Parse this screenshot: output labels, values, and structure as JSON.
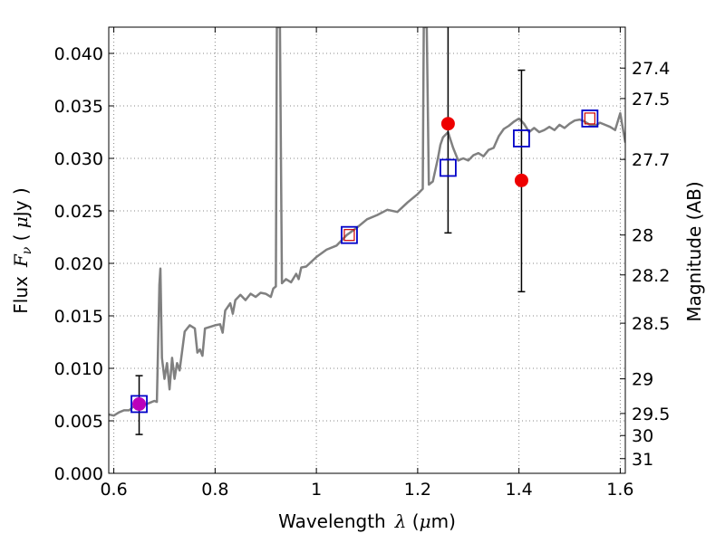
{
  "chart_data": {
    "type": "line",
    "xlabel": "Wavelength",
    "xlabel_symbol": "λ",
    "xlabel_unit_open": " (",
    "xlabel_unit_mu": "μ",
    "xlabel_unit_rest": "m)",
    "ylabel": "Flux",
    "ylabel_symbol": "F",
    "ylabel_sub": "ν",
    "ylabel_unit_open": " ( ",
    "ylabel_unit_mu": "μ",
    "ylabel_unit_rest": "Jy )",
    "y2label": "Magnitude (AB)",
    "xlim": [
      0.59,
      1.61
    ],
    "ylim": [
      0.0,
      0.0425
    ],
    "grid": true,
    "x_ticks": [
      0.6,
      0.8,
      1.0,
      1.2,
      1.4,
      1.6
    ],
    "x_tick_labels": [
      "0.6",
      "0.8",
      "1",
      "1.2",
      "1.4",
      "1.6"
    ],
    "y_ticks": [
      0.0,
      0.005,
      0.01,
      0.015,
      0.02,
      0.025,
      0.03,
      0.035,
      0.04
    ],
    "y_tick_labels": [
      "0.000",
      "0.005",
      "0.010",
      "0.015",
      "0.020",
      "0.025",
      "0.030",
      "0.035",
      "0.040"
    ],
    "y2_ticks": [
      {
        "label": "27.4",
        "flux": 0.0386
      },
      {
        "label": "27.5",
        "flux": 0.0357
      },
      {
        "label": "27.7",
        "flux": 0.0299
      },
      {
        "label": "28",
        "flux": 0.0227
      },
      {
        "label": "28.2",
        "flux": 0.0189
      },
      {
        "label": "28.5",
        "flux": 0.0143
      },
      {
        "label": "29",
        "flux": 0.009
      },
      {
        "label": "29.5",
        "flux": 0.0057
      },
      {
        "label": "30",
        "flux": 0.0036
      },
      {
        "label": "31",
        "flux": 0.0014
      }
    ],
    "series": [
      {
        "kind": "model_spectrum",
        "color": "#808080",
        "points": [
          [
            0.59,
            0.0056
          ],
          [
            0.6,
            0.0055
          ],
          [
            0.61,
            0.0058
          ],
          [
            0.62,
            0.006
          ],
          [
            0.63,
            0.006
          ],
          [
            0.64,
            0.0064
          ],
          [
            0.65,
            0.0065
          ],
          [
            0.66,
            0.0065
          ],
          [
            0.67,
            0.0067
          ],
          [
            0.68,
            0.0069
          ],
          [
            0.685,
            0.0068
          ],
          [
            0.69,
            0.018
          ],
          [
            0.692,
            0.0195
          ],
          [
            0.695,
            0.011
          ],
          [
            0.7,
            0.009
          ],
          [
            0.705,
            0.0105
          ],
          [
            0.71,
            0.008
          ],
          [
            0.715,
            0.011
          ],
          [
            0.72,
            0.009
          ],
          [
            0.725,
            0.0105
          ],
          [
            0.73,
            0.0098
          ],
          [
            0.74,
            0.0135
          ],
          [
            0.75,
            0.0141
          ],
          [
            0.76,
            0.0138
          ],
          [
            0.765,
            0.0115
          ],
          [
            0.77,
            0.0118
          ],
          [
            0.775,
            0.0112
          ],
          [
            0.78,
            0.0138
          ],
          [
            0.8,
            0.0141
          ],
          [
            0.81,
            0.0142
          ],
          [
            0.815,
            0.0134
          ],
          [
            0.82,
            0.0155
          ],
          [
            0.83,
            0.0162
          ],
          [
            0.835,
            0.0152
          ],
          [
            0.84,
            0.0165
          ],
          [
            0.85,
            0.017
          ],
          [
            0.86,
            0.0165
          ],
          [
            0.87,
            0.0171
          ],
          [
            0.88,
            0.0168
          ],
          [
            0.89,
            0.0172
          ],
          [
            0.9,
            0.0171
          ],
          [
            0.91,
            0.0168
          ],
          [
            0.915,
            0.0176
          ],
          [
            0.92,
            0.0178
          ],
          [
            0.922,
            0.0425
          ],
          [
            0.928,
            0.0425
          ],
          [
            0.932,
            0.0181
          ],
          [
            0.94,
            0.0185
          ],
          [
            0.95,
            0.0182
          ],
          [
            0.96,
            0.019
          ],
          [
            0.965,
            0.0185
          ],
          [
            0.97,
            0.0196
          ],
          [
            0.98,
            0.0197
          ],
          [
            1.0,
            0.0206
          ],
          [
            1.02,
            0.0213
          ],
          [
            1.04,
            0.0217
          ],
          [
            1.06,
            0.0227
          ],
          [
            1.08,
            0.0234
          ],
          [
            1.1,
            0.0242
          ],
          [
            1.12,
            0.0246
          ],
          [
            1.14,
            0.0251
          ],
          [
            1.16,
            0.0249
          ],
          [
            1.18,
            0.0258
          ],
          [
            1.2,
            0.0266
          ],
          [
            1.21,
            0.0271
          ],
          [
            1.212,
            0.0425
          ],
          [
            1.218,
            0.0425
          ],
          [
            1.222,
            0.0275
          ],
          [
            1.23,
            0.0278
          ],
          [
            1.24,
            0.03
          ],
          [
            1.245,
            0.0313
          ],
          [
            1.25,
            0.032
          ],
          [
            1.26,
            0.0325
          ],
          [
            1.27,
            0.031
          ],
          [
            1.28,
            0.0298
          ],
          [
            1.29,
            0.03
          ],
          [
            1.3,
            0.0298
          ],
          [
            1.31,
            0.0303
          ],
          [
            1.32,
            0.0305
          ],
          [
            1.33,
            0.0302
          ],
          [
            1.34,
            0.0308
          ],
          [
            1.35,
            0.031
          ],
          [
            1.36,
            0.0321
          ],
          [
            1.37,
            0.0328
          ],
          [
            1.38,
            0.0331
          ],
          [
            1.39,
            0.0335
          ],
          [
            1.4,
            0.0338
          ],
          [
            1.41,
            0.0333
          ],
          [
            1.42,
            0.0325
          ],
          [
            1.43,
            0.0329
          ],
          [
            1.44,
            0.0325
          ],
          [
            1.45,
            0.0327
          ],
          [
            1.46,
            0.033
          ],
          [
            1.47,
            0.0327
          ],
          [
            1.48,
            0.0332
          ],
          [
            1.49,
            0.0329
          ],
          [
            1.5,
            0.0333
          ],
          [
            1.51,
            0.0336
          ],
          [
            1.52,
            0.0337
          ],
          [
            1.53,
            0.0335
          ],
          [
            1.54,
            0.0332
          ],
          [
            1.55,
            0.0331
          ],
          [
            1.56,
            0.0334
          ],
          [
            1.57,
            0.0332
          ],
          [
            1.58,
            0.033
          ],
          [
            1.59,
            0.0327
          ],
          [
            1.6,
            0.0343
          ],
          [
            1.61,
            0.0315
          ]
        ]
      },
      {
        "kind": "model_photometry_outer",
        "color": "#0000c8",
        "points": [
          [
            0.65,
            0.0066
          ],
          [
            1.065,
            0.0227
          ],
          [
            1.26,
            0.0291
          ],
          [
            1.405,
            0.0319
          ],
          [
            1.54,
            0.0338
          ]
        ]
      },
      {
        "kind": "model_photometry_inner",
        "color": "#cc0000",
        "points": [
          [
            1.065,
            0.0227
          ],
          [
            1.54,
            0.0338
          ]
        ]
      },
      {
        "kind": "observed",
        "color": "#ee0000",
        "points": [
          {
            "x": 0.65,
            "y": 0.0066,
            "lo": 0.0037,
            "hi": 0.0093,
            "color": "#bb00bb"
          },
          {
            "x": 1.26,
            "y": 0.0333,
            "lo": 0.0229,
            "hi": 0.0425
          },
          {
            "x": 1.405,
            "y": 0.0279,
            "lo": 0.0173,
            "hi": 0.0384
          }
        ]
      }
    ]
  }
}
